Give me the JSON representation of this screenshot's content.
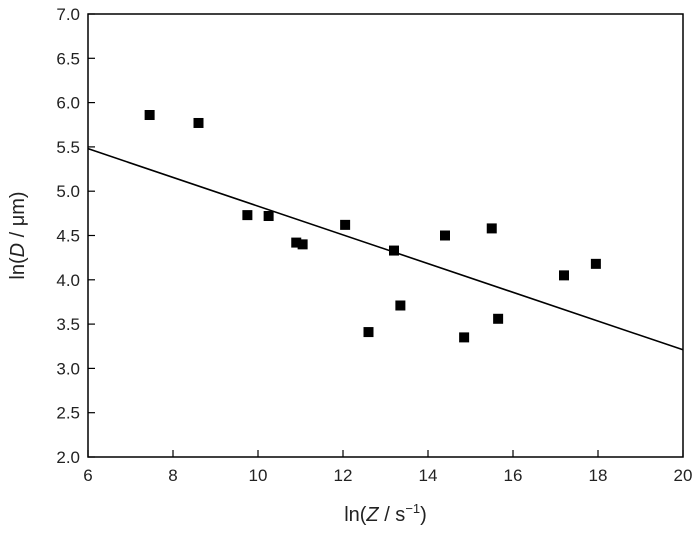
{
  "chart_data": {
    "type": "scatter",
    "xlabel": {
      "prefix": "ln(",
      "var": "Z",
      "mid": " / s",
      "sup": "−1",
      "suffix": ")"
    },
    "ylabel": {
      "prefix": "ln(",
      "var": "D",
      "mid": " / ",
      "unit": "μm",
      "suffix": ")"
    },
    "xlim": [
      6,
      20
    ],
    "ylim": [
      2.0,
      7.0
    ],
    "x_ticks": [
      6,
      8,
      10,
      12,
      14,
      16,
      18,
      20
    ],
    "x_tick_labels": [
      "6",
      "8",
      "10",
      "12",
      "14",
      "16",
      "18",
      "20"
    ],
    "y_ticks": [
      2.0,
      2.5,
      3.0,
      3.5,
      4.0,
      4.5,
      5.0,
      5.5,
      6.0,
      6.5,
      7.0
    ],
    "y_tick_labels": [
      "2.0",
      "2.5",
      "3.0",
      "3.5",
      "4.0",
      "4.5",
      "5.0",
      "5.5",
      "6.0",
      "6.5",
      "7.0"
    ],
    "grid": false,
    "points": [
      {
        "x": 7.45,
        "y": 5.86
      },
      {
        "x": 8.6,
        "y": 5.77
      },
      {
        "x": 9.75,
        "y": 4.73
      },
      {
        "x": 10.25,
        "y": 4.72
      },
      {
        "x": 10.9,
        "y": 4.42
      },
      {
        "x": 11.05,
        "y": 4.4
      },
      {
        "x": 12.05,
        "y": 4.62
      },
      {
        "x": 12.6,
        "y": 3.41
      },
      {
        "x": 13.2,
        "y": 4.33
      },
      {
        "x": 13.35,
        "y": 3.71
      },
      {
        "x": 14.4,
        "y": 4.5
      },
      {
        "x": 14.85,
        "y": 3.35
      },
      {
        "x": 15.5,
        "y": 4.58
      },
      {
        "x": 15.65,
        "y": 3.56
      },
      {
        "x": 17.2,
        "y": 4.05
      },
      {
        "x": 17.95,
        "y": 4.18
      }
    ],
    "fit_line": {
      "x": [
        6,
        20
      ],
      "y": [
        5.48,
        3.21
      ]
    },
    "colors": {
      "marker": "#000000",
      "line": "#000000",
      "axis": "#000000"
    }
  }
}
